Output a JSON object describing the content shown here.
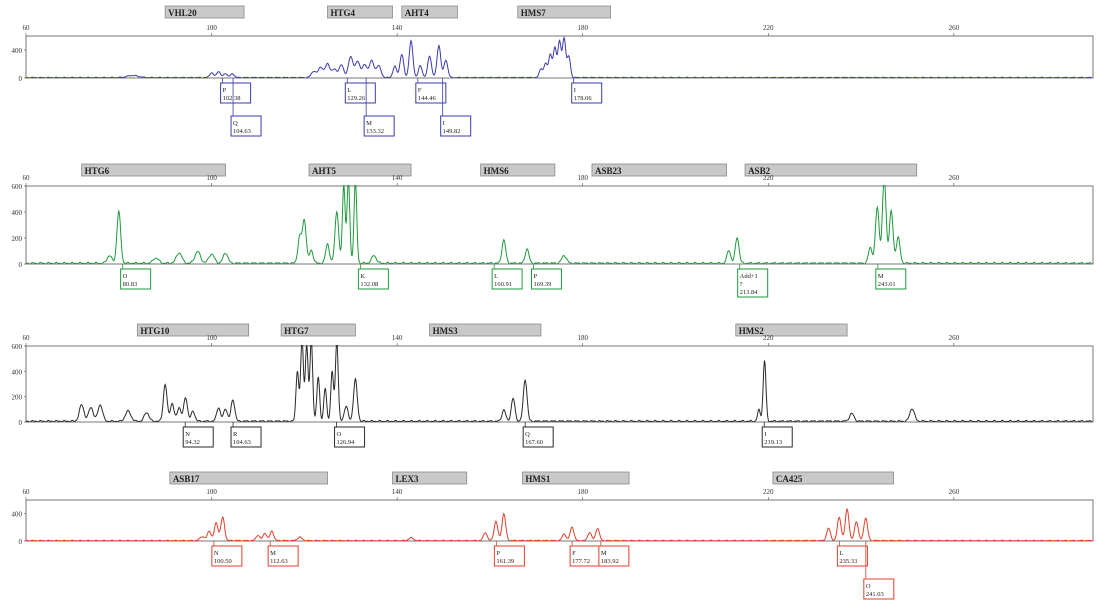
{
  "chart_data": [
    {
      "type": "line",
      "color": "#3b3bb0",
      "x_ticks": [
        "60",
        "100",
        "140",
        "180",
        "220",
        "260"
      ],
      "y_ticks": [
        "400",
        "0"
      ],
      "ylim": [
        0,
        600
      ],
      "grid": false,
      "markers": [
        {
          "label": "VHL20",
          "start": 90,
          "end": 107
        },
        {
          "label": "HTG4",
          "start": 125,
          "end": 139
        },
        {
          "label": "AHT4",
          "start": 141,
          "end": 153
        },
        {
          "label": "HMS7",
          "start": 166,
          "end": 186
        }
      ],
      "peaks": [
        {
          "x": 83,
          "y": 30,
          "w": 1.2
        },
        {
          "x": 100,
          "y": 70,
          "w": 0.4
        },
        {
          "x": 101.5,
          "y": 90,
          "w": 0.4
        },
        {
          "x": 103,
          "y": 60,
          "w": 0.4
        },
        {
          "x": 104.5,
          "y": 55,
          "w": 0.4
        },
        {
          "x": 122,
          "y": 90,
          "w": 0.5
        },
        {
          "x": 123.5,
          "y": 150,
          "w": 0.5
        },
        {
          "x": 125,
          "y": 200,
          "w": 0.5
        },
        {
          "x": 126.5,
          "y": 120,
          "w": 0.5
        },
        {
          "x": 128,
          "y": 180,
          "w": 0.5
        },
        {
          "x": 130,
          "y": 300,
          "w": 0.5
        },
        {
          "x": 131.5,
          "y": 230,
          "w": 0.5
        },
        {
          "x": 133,
          "y": 180,
          "w": 0.5
        },
        {
          "x": 134.5,
          "y": 240,
          "w": 0.5
        },
        {
          "x": 136,
          "y": 170,
          "w": 0.5
        },
        {
          "x": 139.5,
          "y": 160,
          "w": 0.4
        },
        {
          "x": 141,
          "y": 330,
          "w": 0.4
        },
        {
          "x": 143,
          "y": 520,
          "w": 0.4
        },
        {
          "x": 145,
          "y": 170,
          "w": 0.4
        },
        {
          "x": 147,
          "y": 310,
          "w": 0.4
        },
        {
          "x": 149,
          "y": 460,
          "w": 0.4
        },
        {
          "x": 150.5,
          "y": 250,
          "w": 0.4
        },
        {
          "x": 171,
          "y": 130,
          "w": 0.35
        },
        {
          "x": 172,
          "y": 200,
          "w": 0.35
        },
        {
          "x": 173,
          "y": 330,
          "w": 0.35
        },
        {
          "x": 174,
          "y": 420,
          "w": 0.35
        },
        {
          "x": 175,
          "y": 510,
          "w": 0.35
        },
        {
          "x": 176,
          "y": 560,
          "w": 0.35
        },
        {
          "x": 177,
          "y": 300,
          "w": 0.35
        }
      ],
      "labels": [
        {
          "lines": [
            "P",
            "102.38"
          ],
          "row": 1,
          "tick": 102.38
        },
        {
          "lines": [
            "Q",
            "104.63"
          ],
          "row": 2,
          "tick": 104.63
        },
        {
          "lines": [
            "L",
            "129.26"
          ],
          "row": 1,
          "tick": 129.26
        },
        {
          "lines": [
            "M",
            "133.32"
          ],
          "row": 2,
          "tick": 133.32
        },
        {
          "lines": [
            "F",
            "144.46"
          ],
          "row": 1,
          "tick": 144.46
        },
        {
          "lines": [
            "I",
            "149.82"
          ],
          "row": 2,
          "tick": 149.82
        },
        {
          "lines": [
            "I",
            "178.06"
          ],
          "row": 1,
          "tick": 178.06
        }
      ]
    },
    {
      "type": "line",
      "color": "#1f9a3a",
      "x_ticks": [
        "60",
        "100",
        "140",
        "180",
        "220",
        "260"
      ],
      "y_ticks": [
        "600",
        "400",
        "200",
        "0"
      ],
      "ylim": [
        0,
        600
      ],
      "grid": false,
      "markers": [
        {
          "label": "HTG6",
          "start": 72,
          "end": 103
        },
        {
          "label": "AHT5",
          "start": 121,
          "end": 143
        },
        {
          "label": "HMS6",
          "start": 158,
          "end": 174
        },
        {
          "label": "ASB23",
          "start": 182,
          "end": 211
        },
        {
          "label": "ASB2",
          "start": 215,
          "end": 252
        }
      ],
      "peaks": [
        {
          "x": 78,
          "y": 60,
          "w": 0.5
        },
        {
          "x": 80,
          "y": 400,
          "w": 0.4
        },
        {
          "x": 88,
          "y": 40,
          "w": 0.6
        },
        {
          "x": 93,
          "y": 80,
          "w": 0.6
        },
        {
          "x": 97,
          "y": 90,
          "w": 0.6
        },
        {
          "x": 100,
          "y": 70,
          "w": 0.6
        },
        {
          "x": 103,
          "y": 80,
          "w": 0.5
        },
        {
          "x": 119,
          "y": 200,
          "w": 0.4
        },
        {
          "x": 120,
          "y": 330,
          "w": 0.4
        },
        {
          "x": 121.5,
          "y": 100,
          "w": 0.4
        },
        {
          "x": 125,
          "y": 150,
          "w": 0.4
        },
        {
          "x": 127,
          "y": 400,
          "w": 0.4
        },
        {
          "x": 128.5,
          "y": 600,
          "w": 0.3
        },
        {
          "x": 129.5,
          "y": 640,
          "w": 0.3
        },
        {
          "x": 131,
          "y": 640,
          "w": 0.3
        },
        {
          "x": 135,
          "y": 60,
          "w": 0.5
        },
        {
          "x": 163,
          "y": 180,
          "w": 0.4
        },
        {
          "x": 168,
          "y": 110,
          "w": 0.4
        },
        {
          "x": 176,
          "y": 60,
          "w": 0.5
        },
        {
          "x": 211.5,
          "y": 100,
          "w": 0.4
        },
        {
          "x": 213.3,
          "y": 200,
          "w": 0.4
        },
        {
          "x": 242,
          "y": 120,
          "w": 0.4
        },
        {
          "x": 243.5,
          "y": 430,
          "w": 0.4
        },
        {
          "x": 245,
          "y": 640,
          "w": 0.4
        },
        {
          "x": 246.5,
          "y": 400,
          "w": 0.4
        },
        {
          "x": 248,
          "y": 200,
          "w": 0.4
        }
      ],
      "labels": [
        {
          "lines": [
            "O",
            "80.83"
          ],
          "row": 1,
          "tick": 80.83
        },
        {
          "lines": [
            "K",
            "132.08"
          ],
          "row": 1,
          "tick": 132.08
        },
        {
          "lines": [
            "L",
            "160.91"
          ],
          "row": 1,
          "tick": 160.91
        },
        {
          "lines": [
            "P",
            "169.39"
          ],
          "row": 1,
          "tick": 169.39
        },
        {
          "lines": [
            "Add+1",
            "?",
            "213.84"
          ],
          "row": 1,
          "tick": 213.84
        },
        {
          "lines": [
            "M",
            "243.61"
          ],
          "row": 1,
          "tick": 243.61
        }
      ]
    },
    {
      "type": "line",
      "color": "#2a2a2a",
      "x_ticks": [
        "60",
        "100",
        "140",
        "180",
        "220",
        "260"
      ],
      "y_ticks": [
        "600",
        "400",
        "200",
        "0"
      ],
      "ylim": [
        0,
        600
      ],
      "grid": false,
      "markers": [
        {
          "label": "HTG10",
          "start": 84,
          "end": 108
        },
        {
          "label": "HTG7",
          "start": 115,
          "end": 131
        },
        {
          "label": "HMS3",
          "start": 147,
          "end": 171
        },
        {
          "label": "HMS2",
          "start": 213,
          "end": 237
        }
      ],
      "peaks": [
        {
          "x": 72,
          "y": 130,
          "w": 0.5
        },
        {
          "x": 74,
          "y": 110,
          "w": 0.5
        },
        {
          "x": 76,
          "y": 130,
          "w": 0.5
        },
        {
          "x": 82,
          "y": 80,
          "w": 0.6
        },
        {
          "x": 86,
          "y": 70,
          "w": 0.5
        },
        {
          "x": 90,
          "y": 290,
          "w": 0.4
        },
        {
          "x": 91.5,
          "y": 140,
          "w": 0.4
        },
        {
          "x": 93,
          "y": 110,
          "w": 0.4
        },
        {
          "x": 94.4,
          "y": 190,
          "w": 0.4
        },
        {
          "x": 96,
          "y": 80,
          "w": 0.4
        },
        {
          "x": 101.5,
          "y": 110,
          "w": 0.4
        },
        {
          "x": 103,
          "y": 100,
          "w": 0.4
        },
        {
          "x": 104.6,
          "y": 170,
          "w": 0.4
        },
        {
          "x": 118.5,
          "y": 400,
          "w": 0.3
        },
        {
          "x": 119.5,
          "y": 640,
          "w": 0.3
        },
        {
          "x": 120.5,
          "y": 600,
          "w": 0.3
        },
        {
          "x": 121.5,
          "y": 640,
          "w": 0.3
        },
        {
          "x": 123,
          "y": 350,
          "w": 0.3
        },
        {
          "x": 124.5,
          "y": 260,
          "w": 0.3
        },
        {
          "x": 126,
          "y": 390,
          "w": 0.3
        },
        {
          "x": 127,
          "y": 640,
          "w": 0.3
        },
        {
          "x": 129,
          "y": 120,
          "w": 0.4
        },
        {
          "x": 131,
          "y": 330,
          "w": 0.4
        },
        {
          "x": 163,
          "y": 90,
          "w": 0.4
        },
        {
          "x": 165,
          "y": 180,
          "w": 0.4
        },
        {
          "x": 167.6,
          "y": 330,
          "w": 0.4
        },
        {
          "x": 218,
          "y": 90,
          "w": 0.3
        },
        {
          "x": 219.2,
          "y": 480,
          "w": 0.3
        },
        {
          "x": 238,
          "y": 60,
          "w": 0.5
        },
        {
          "x": 251,
          "y": 100,
          "w": 0.5
        }
      ],
      "labels": [
        {
          "lines": [
            "N",
            "94.32"
          ],
          "row": 1,
          "tick": 94.32
        },
        {
          "lines": [
            "R",
            "104.63"
          ],
          "row": 1,
          "tick": 104.63
        },
        {
          "lines": [
            "O",
            "126.94"
          ],
          "row": 1,
          "tick": 126.94
        },
        {
          "lines": [
            "Q",
            "167.60"
          ],
          "row": 1,
          "tick": 167.6
        },
        {
          "lines": [
            "I",
            "219.13"
          ],
          "row": 1,
          "tick": 219.13
        }
      ]
    },
    {
      "type": "line",
      "color": "#e0402a",
      "x_ticks": [
        "60",
        "100",
        "140",
        "180",
        "220",
        "260"
      ],
      "y_ticks": [
        "400",
        "0"
      ],
      "ylim": [
        0,
        600
      ],
      "grid": false,
      "markers": [
        {
          "label": "ASB17",
          "start": 91,
          "end": 125
        },
        {
          "label": "LEX3",
          "start": 139,
          "end": 155
        },
        {
          "label": "HMS1",
          "start": 167,
          "end": 190
        },
        {
          "label": "CA425",
          "start": 221,
          "end": 247
        }
      ],
      "peaks": [
        {
          "x": 98,
          "y": 60,
          "w": 0.5
        },
        {
          "x": 99.5,
          "y": 140,
          "w": 0.4
        },
        {
          "x": 101,
          "y": 260,
          "w": 0.4
        },
        {
          "x": 102.4,
          "y": 340,
          "w": 0.4
        },
        {
          "x": 110,
          "y": 80,
          "w": 0.4
        },
        {
          "x": 111.5,
          "y": 110,
          "w": 0.4
        },
        {
          "x": 113,
          "y": 140,
          "w": 0.4
        },
        {
          "x": 119,
          "y": 50,
          "w": 0.5
        },
        {
          "x": 143,
          "y": 40,
          "w": 0.5
        },
        {
          "x": 159,
          "y": 120,
          "w": 0.4
        },
        {
          "x": 161.3,
          "y": 280,
          "w": 0.4
        },
        {
          "x": 163,
          "y": 390,
          "w": 0.4
        },
        {
          "x": 176,
          "y": 100,
          "w": 0.4
        },
        {
          "x": 177.7,
          "y": 200,
          "w": 0.4
        },
        {
          "x": 181.5,
          "y": 120,
          "w": 0.4
        },
        {
          "x": 183.2,
          "y": 180,
          "w": 0.4
        },
        {
          "x": 233,
          "y": 180,
          "w": 0.4
        },
        {
          "x": 235.3,
          "y": 340,
          "w": 0.4
        },
        {
          "x": 237,
          "y": 460,
          "w": 0.4
        },
        {
          "x": 239,
          "y": 280,
          "w": 0.4
        },
        {
          "x": 241,
          "y": 330,
          "w": 0.4
        }
      ],
      "labels": [
        {
          "lines": [
            "N",
            "100.50"
          ],
          "row": 1,
          "tick": 100.5
        },
        {
          "lines": [
            "M",
            "112.63"
          ],
          "row": 1,
          "tick": 112.63
        },
        {
          "lines": [
            "P",
            "161.39"
          ],
          "row": 1,
          "tick": 161.39
        },
        {
          "lines": [
            "F",
            "177.72"
          ],
          "row": 1,
          "tick": 177.72
        },
        {
          "lines": [
            "M",
            "183.92"
          ],
          "row": 1,
          "tick": 183.92
        },
        {
          "lines": [
            "L",
            "235.33"
          ],
          "row": 1,
          "tick": 235.33
        },
        {
          "lines": [
            "O",
            "241.03"
          ],
          "row": 2,
          "tick": 241.03
        }
      ]
    }
  ]
}
